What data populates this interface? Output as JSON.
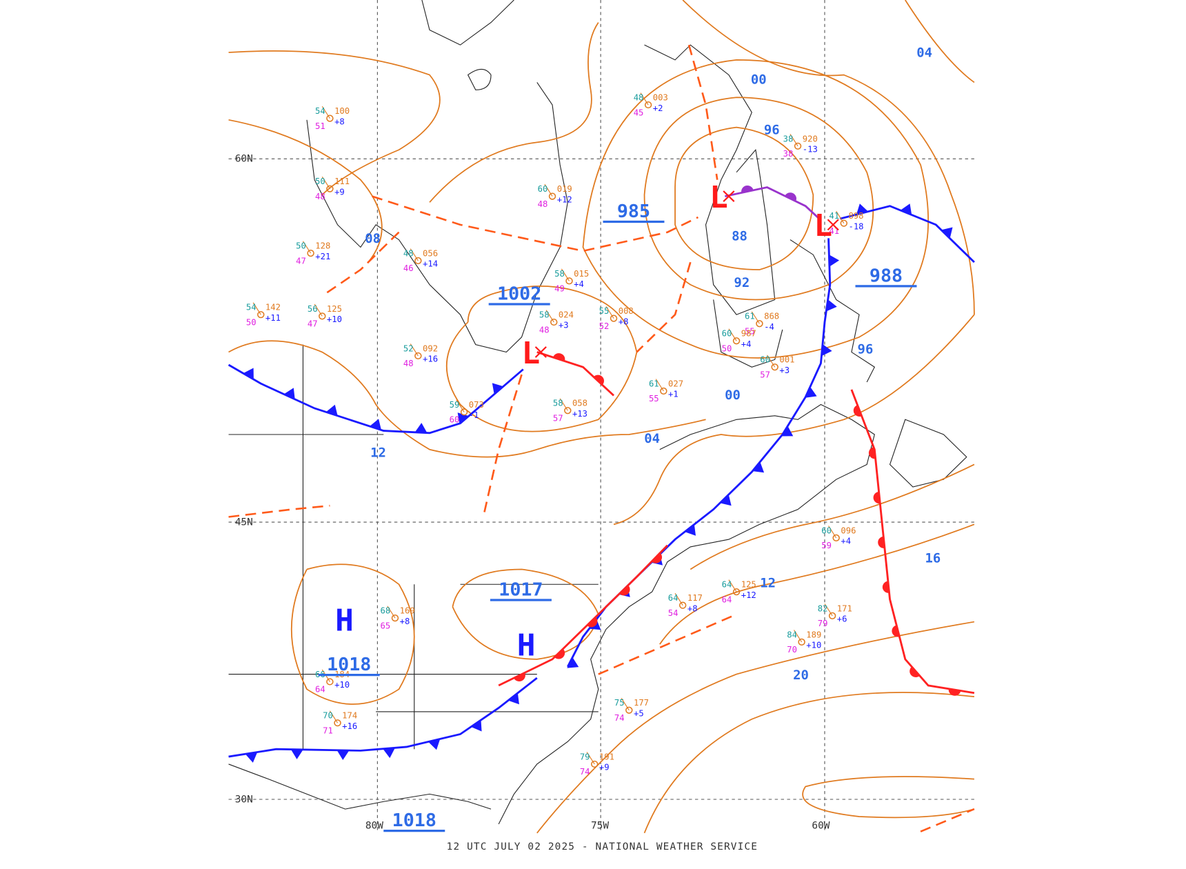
{
  "footer": "12 UTC JULY 02 2025 - NATIONAL WEATHER SERVICE",
  "grid_labels": [
    "60N",
    "45N",
    "30N",
    "80W",
    "75W",
    "60W"
  ],
  "pressure_centers": [
    "H",
    "H",
    "L",
    "L",
    "L"
  ],
  "center_pressures": [
    "1002",
    "985",
    "988",
    "1017",
    "1018",
    "1018"
  ],
  "isobar_labels": [
    "00",
    "96",
    "04",
    "08",
    "88",
    "92",
    "96",
    "00",
    "04",
    "12",
    "12",
    "16",
    "20"
  ],
  "stations": [
    {
      "temp": "58",
      "pressure": "058",
      "tendency": "+13",
      "dew": "57"
    },
    {
      "temp": "55",
      "pressure": "008",
      "tendency": "+8",
      "dew": "52"
    },
    {
      "temp": "58",
      "pressure": "024",
      "tendency": "+3",
      "dew": "48"
    },
    {
      "temp": "52",
      "pressure": "092",
      "tendency": "+16",
      "dew": "48"
    },
    {
      "temp": "48",
      "pressure": "056",
      "tendency": "+14",
      "dew": "46"
    },
    {
      "temp": "56",
      "pressure": "125",
      "tendency": "+10",
      "dew": "47"
    },
    {
      "temp": "54",
      "pressure": "142",
      "tendency": "+11",
      "dew": "50"
    },
    {
      "temp": "38",
      "pressure": "920",
      "tendency": "-13",
      "dew": "38"
    },
    {
      "temp": "41",
      "pressure": "898",
      "tendency": "-18",
      "dew": "41"
    },
    {
      "temp": "61",
      "pressure": "868",
      "tendency": "-4",
      "dew": "55"
    },
    {
      "temp": "60",
      "pressure": "987",
      "tendency": "+4",
      "dew": "50"
    },
    {
      "temp": "60",
      "pressure": "001",
      "tendency": "+3",
      "dew": "57"
    },
    {
      "temp": "61",
      "pressure": "027",
      "tendency": "+1",
      "dew": "55"
    },
    {
      "temp": "60",
      "pressure": "096",
      "tendency": "+4",
      "dew": "59"
    },
    {
      "temp": "82",
      "pressure": "171",
      "tendency": "+6",
      "dew": "79"
    },
    {
      "temp": "84",
      "pressure": "189",
      "tendency": "+10",
      "dew": "70"
    },
    {
      "temp": "59",
      "pressure": "073",
      "tendency": "-1",
      "dew": "60"
    },
    {
      "temp": "54",
      "pressure": "100",
      "tendency": "+8",
      "dew": "51"
    },
    {
      "temp": "50",
      "pressure": "111",
      "tendency": "+9",
      "dew": "48"
    },
    {
      "temp": "50",
      "pressure": "128",
      "tendency": "+21",
      "dew": "47"
    },
    {
      "temp": "60",
      "pressure": "019",
      "tendency": "+12",
      "dew": "48"
    },
    {
      "temp": "58",
      "pressure": "015",
      "tendency": "+4",
      "dew": "49"
    },
    {
      "temp": "48",
      "pressure": "003",
      "tendency": "+2",
      "dew": "45"
    },
    {
      "temp": "64",
      "pressure": "117",
      "tendency": "+8",
      "dew": "54"
    },
    {
      "temp": "64",
      "pressure": "125",
      "tendency": "+12",
      "dew": "64"
    },
    {
      "temp": "79",
      "pressure": "191",
      "tendency": "+9",
      "dew": "74"
    },
    {
      "temp": "75",
      "pressure": "177",
      "tendency": "+5",
      "dew": "74"
    },
    {
      "temp": "66",
      "pressure": "184",
      "tendency": "+10",
      "dew": "64"
    },
    {
      "temp": "70",
      "pressure": "174",
      "tendency": "+16",
      "dew": "71"
    },
    {
      "temp": "68",
      "pressure": "169",
      "tendency": "+8",
      "dew": "65"
    }
  ]
}
